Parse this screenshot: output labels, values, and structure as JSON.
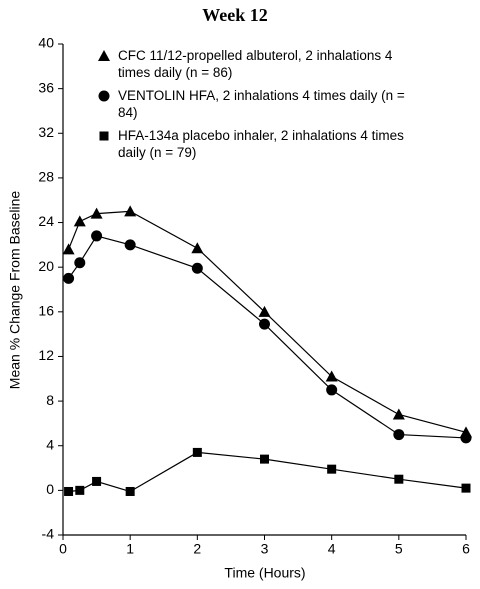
{
  "chart_data": {
    "type": "line",
    "title": "Week 12",
    "x_label": "Time (Hours)",
    "y_label": "Mean % Change From Baseline",
    "xlim": [
      0,
      6
    ],
    "xticks": [
      0,
      1,
      2,
      3,
      4,
      5,
      6
    ],
    "ylim": [
      -4,
      40
    ],
    "yticks": [
      -4,
      0,
      4,
      8,
      12,
      16,
      20,
      24,
      28,
      32,
      36,
      40
    ],
    "grid": false,
    "legend": "upper right",
    "series": [
      {
        "name": "CFC 11/12-propelled albuterol, 2 inhalations 4 times daily (n = 86)",
        "color": "#000000",
        "marker": "triangle",
        "x": [
          0.083,
          0.25,
          0.5,
          1,
          2,
          3,
          4,
          5,
          6
        ],
        "values": [
          21.6,
          24.1,
          24.8,
          25.0,
          21.7,
          16.0,
          10.2,
          6.8,
          5.2
        ]
      },
      {
        "name": "VENTOLIN HFA, 2 inhalations 4 times daily (n = 84)",
        "color": "#000000",
        "marker": "circle",
        "x": [
          0.083,
          0.25,
          0.5,
          1,
          2,
          3,
          4,
          5,
          6
        ],
        "values": [
          19.0,
          20.4,
          22.8,
          22.0,
          19.9,
          14.9,
          9.0,
          5.0,
          4.7
        ]
      },
      {
        "name": "HFA-134a placebo inhaler, 2 inhalations 4 times daily (n = 79)",
        "color": "#000000",
        "marker": "square",
        "x": [
          0.083,
          0.25,
          0.5,
          1,
          2,
          3,
          4,
          5,
          6
        ],
        "values": [
          -0.1,
          0.0,
          0.8,
          -0.1,
          3.4,
          2.8,
          1.9,
          1.0,
          0.2
        ]
      }
    ]
  }
}
